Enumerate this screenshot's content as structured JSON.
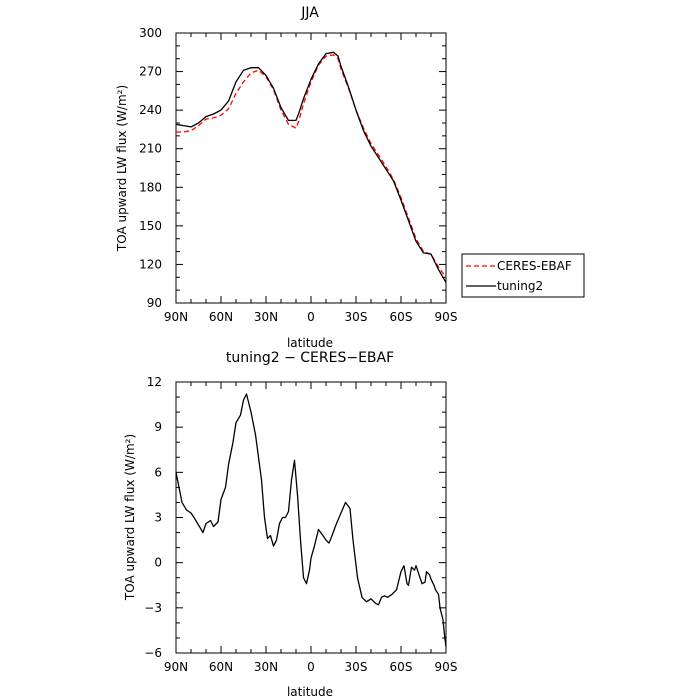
{
  "chart_data": [
    {
      "type": "line",
      "title": "JJA",
      "xlabel": "latitude",
      "ylabel": "TOA upward LW flux (W/m²)",
      "x_ticks": [
        "90N",
        "60N",
        "30N",
        "0",
        "30S",
        "60S",
        "90S"
      ],
      "y_ticks": [
        "90",
        "120",
        "150",
        "180",
        "210",
        "240",
        "270",
        "300"
      ],
      "xlim": [
        90,
        -90
      ],
      "ylim": [
        90,
        300
      ],
      "grid": false,
      "legend_position": "outside-right",
      "x": [
        90,
        85,
        80,
        75,
        70,
        65,
        60,
        55,
        50,
        45,
        40,
        35,
        30,
        25,
        20,
        15,
        10,
        8,
        5,
        0,
        -5,
        -10,
        -15,
        -18,
        -20,
        -25,
        -30,
        -35,
        -40,
        -45,
        -50,
        -55,
        -60,
        -65,
        -70,
        -75,
        -80,
        -85,
        -90
      ],
      "series": [
        {
          "name": "CERES-EBAF",
          "color": "#ff0000",
          "dash": "dashed",
          "values": [
            223,
            223,
            224,
            228,
            233,
            234,
            236,
            241,
            253,
            262,
            269,
            271,
            266,
            256,
            240,
            229,
            226,
            232,
            245,
            262,
            275,
            282,
            283,
            280,
            272,
            257,
            240,
            226,
            214,
            205,
            196,
            186,
            172,
            156,
            140,
            130,
            128,
            118,
            110
          ]
        },
        {
          "name": "tuning2",
          "color": "#000000",
          "dash": "solid",
          "values": [
            229,
            228,
            227,
            230,
            235,
            237,
            240,
            247,
            262,
            271,
            273,
            273,
            267,
            257,
            242,
            232,
            232,
            238,
            249,
            264,
            276,
            284,
            285,
            282,
            274,
            258,
            240,
            224,
            212,
            203,
            194,
            185,
            170,
            154,
            138,
            129,
            128,
            116,
            106
          ]
        }
      ]
    },
    {
      "type": "line",
      "title": "tuning2 − CERES−EBAF",
      "xlabel": "latitude",
      "ylabel": "TOA upward LW flux (W/m²)",
      "x_ticks": [
        "90N",
        "60N",
        "30N",
        "0",
        "30S",
        "60S",
        "90S"
      ],
      "y_ticks": [
        "−6",
        "−3",
        "0",
        "3",
        "6",
        "9",
        "12"
      ],
      "xlim": [
        90,
        -90
      ],
      "ylim": [
        -6,
        12
      ],
      "grid": false,
      "x": [
        90,
        86,
        83,
        80,
        78,
        75,
        72,
        70,
        67,
        65,
        62,
        60,
        57,
        55,
        52,
        50,
        47,
        45,
        43,
        40,
        37,
        35,
        33,
        31,
        29,
        27,
        25,
        23,
        21,
        19,
        17,
        15,
        13,
        11,
        9,
        7,
        5,
        3,
        1,
        0,
        -2,
        -5,
        -8,
        -10,
        -12,
        -14,
        -17,
        -20,
        -23,
        -26,
        -28,
        -31,
        -34,
        -37,
        -40,
        -43,
        -45,
        -47,
        -49,
        -51,
        -54,
        -57,
        -60,
        -62,
        -64,
        -65,
        -67,
        -69,
        -70,
        -72,
        -74,
        -76,
        -77,
        -79,
        -80,
        -82,
        -83,
        -85,
        -86,
        -88,
        -89,
        -90
      ],
      "series": [
        {
          "color": "#000000",
          "values": [
            6.0,
            4.0,
            3.5,
            3.3,
            3.0,
            2.5,
            2.0,
            2.6,
            2.8,
            2.4,
            2.7,
            4.2,
            5.0,
            6.5,
            8.0,
            9.3,
            9.8,
            10.8,
            11.2,
            10.0,
            8.5,
            7.0,
            5.5,
            3.0,
            1.6,
            1.8,
            1.1,
            1.5,
            2.6,
            3.0,
            3.0,
            3.4,
            5.5,
            6.8,
            4.5,
            1.5,
            -1.0,
            -1.4,
            -0.5,
            0.3,
            1.0,
            2.2,
            1.8,
            1.5,
            1.3,
            1.8,
            2.6,
            3.3,
            4.0,
            3.6,
            1.5,
            -1.0,
            -2.3,
            -2.6,
            -2.4,
            -2.7,
            -2.8,
            -2.3,
            -2.2,
            -2.3,
            -2.1,
            -1.8,
            -0.6,
            -0.2,
            -1.4,
            -1.5,
            -0.3,
            -0.5,
            -0.2,
            -0.8,
            -1.4,
            -1.3,
            -0.6,
            -0.8,
            -1.1,
            -1.5,
            -1.8,
            -2.1,
            -3.0,
            -3.8,
            -4.8,
            -5.6
          ]
        }
      ]
    }
  ]
}
